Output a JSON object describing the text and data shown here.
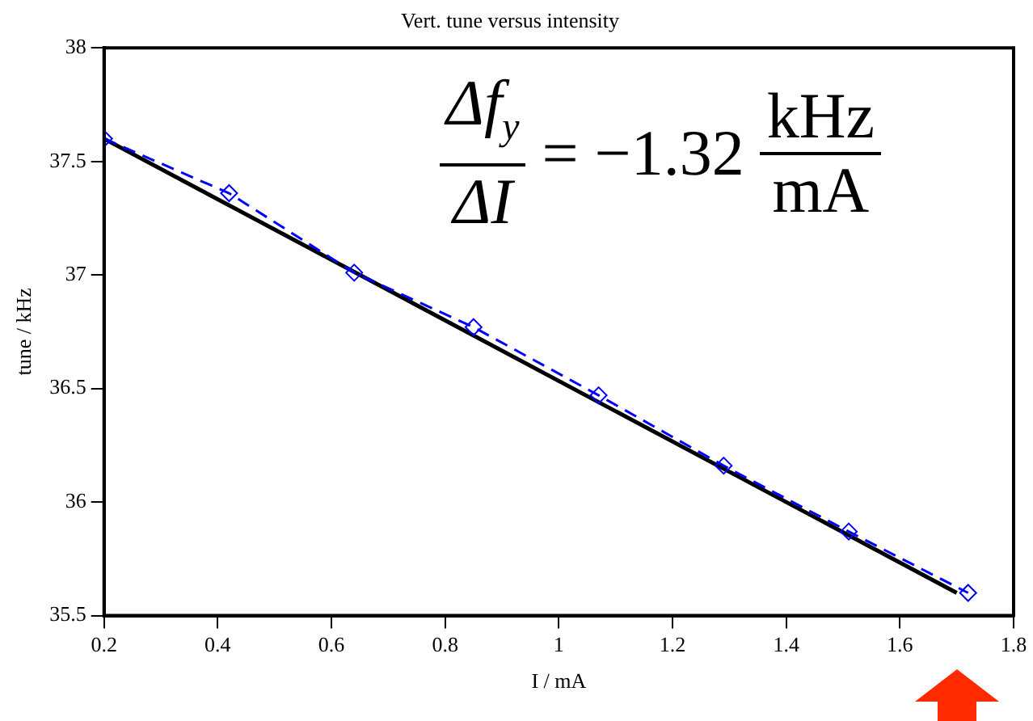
{
  "chart_data": {
    "type": "line",
    "title": "Vert. tune versus intensity",
    "xlabel": "I / mA",
    "ylabel": "tune / kHz",
    "xlim": [
      0.2,
      1.8
    ],
    "xticks": [
      0.2,
      0.4,
      0.6,
      0.8,
      1,
      1.2,
      1.4,
      1.6,
      1.8
    ],
    "ylim": [
      35.5,
      38
    ],
    "yticks": [
      35.5,
      36,
      36.5,
      37,
      37.5,
      38
    ],
    "grid": false,
    "legend": false,
    "annotations": [
      "Δf$_{y}$",
      "ΔI",
      "= −1.32",
      "kHz",
      "mA"
    ],
    "series": [
      {
        "type": "line",
        "color": "#0000ff",
        "marker": "diamond",
        "line_style": "dashed",
        "x": [
          0.2,
          0.42,
          0.64,
          0.85,
          1.07,
          1.29,
          1.51,
          1.72
        ],
        "values": [
          37.6,
          37.36,
          37.01,
          36.77,
          36.47,
          36.16,
          35.87,
          35.6
        ]
      },
      {
        "type": "line",
        "color": "#000000",
        "marker": "none",
        "line_style": "solid",
        "x": [
          0.2,
          1.7
        ],
        "values": [
          37.6,
          35.6
        ]
      }
    ]
  }
}
